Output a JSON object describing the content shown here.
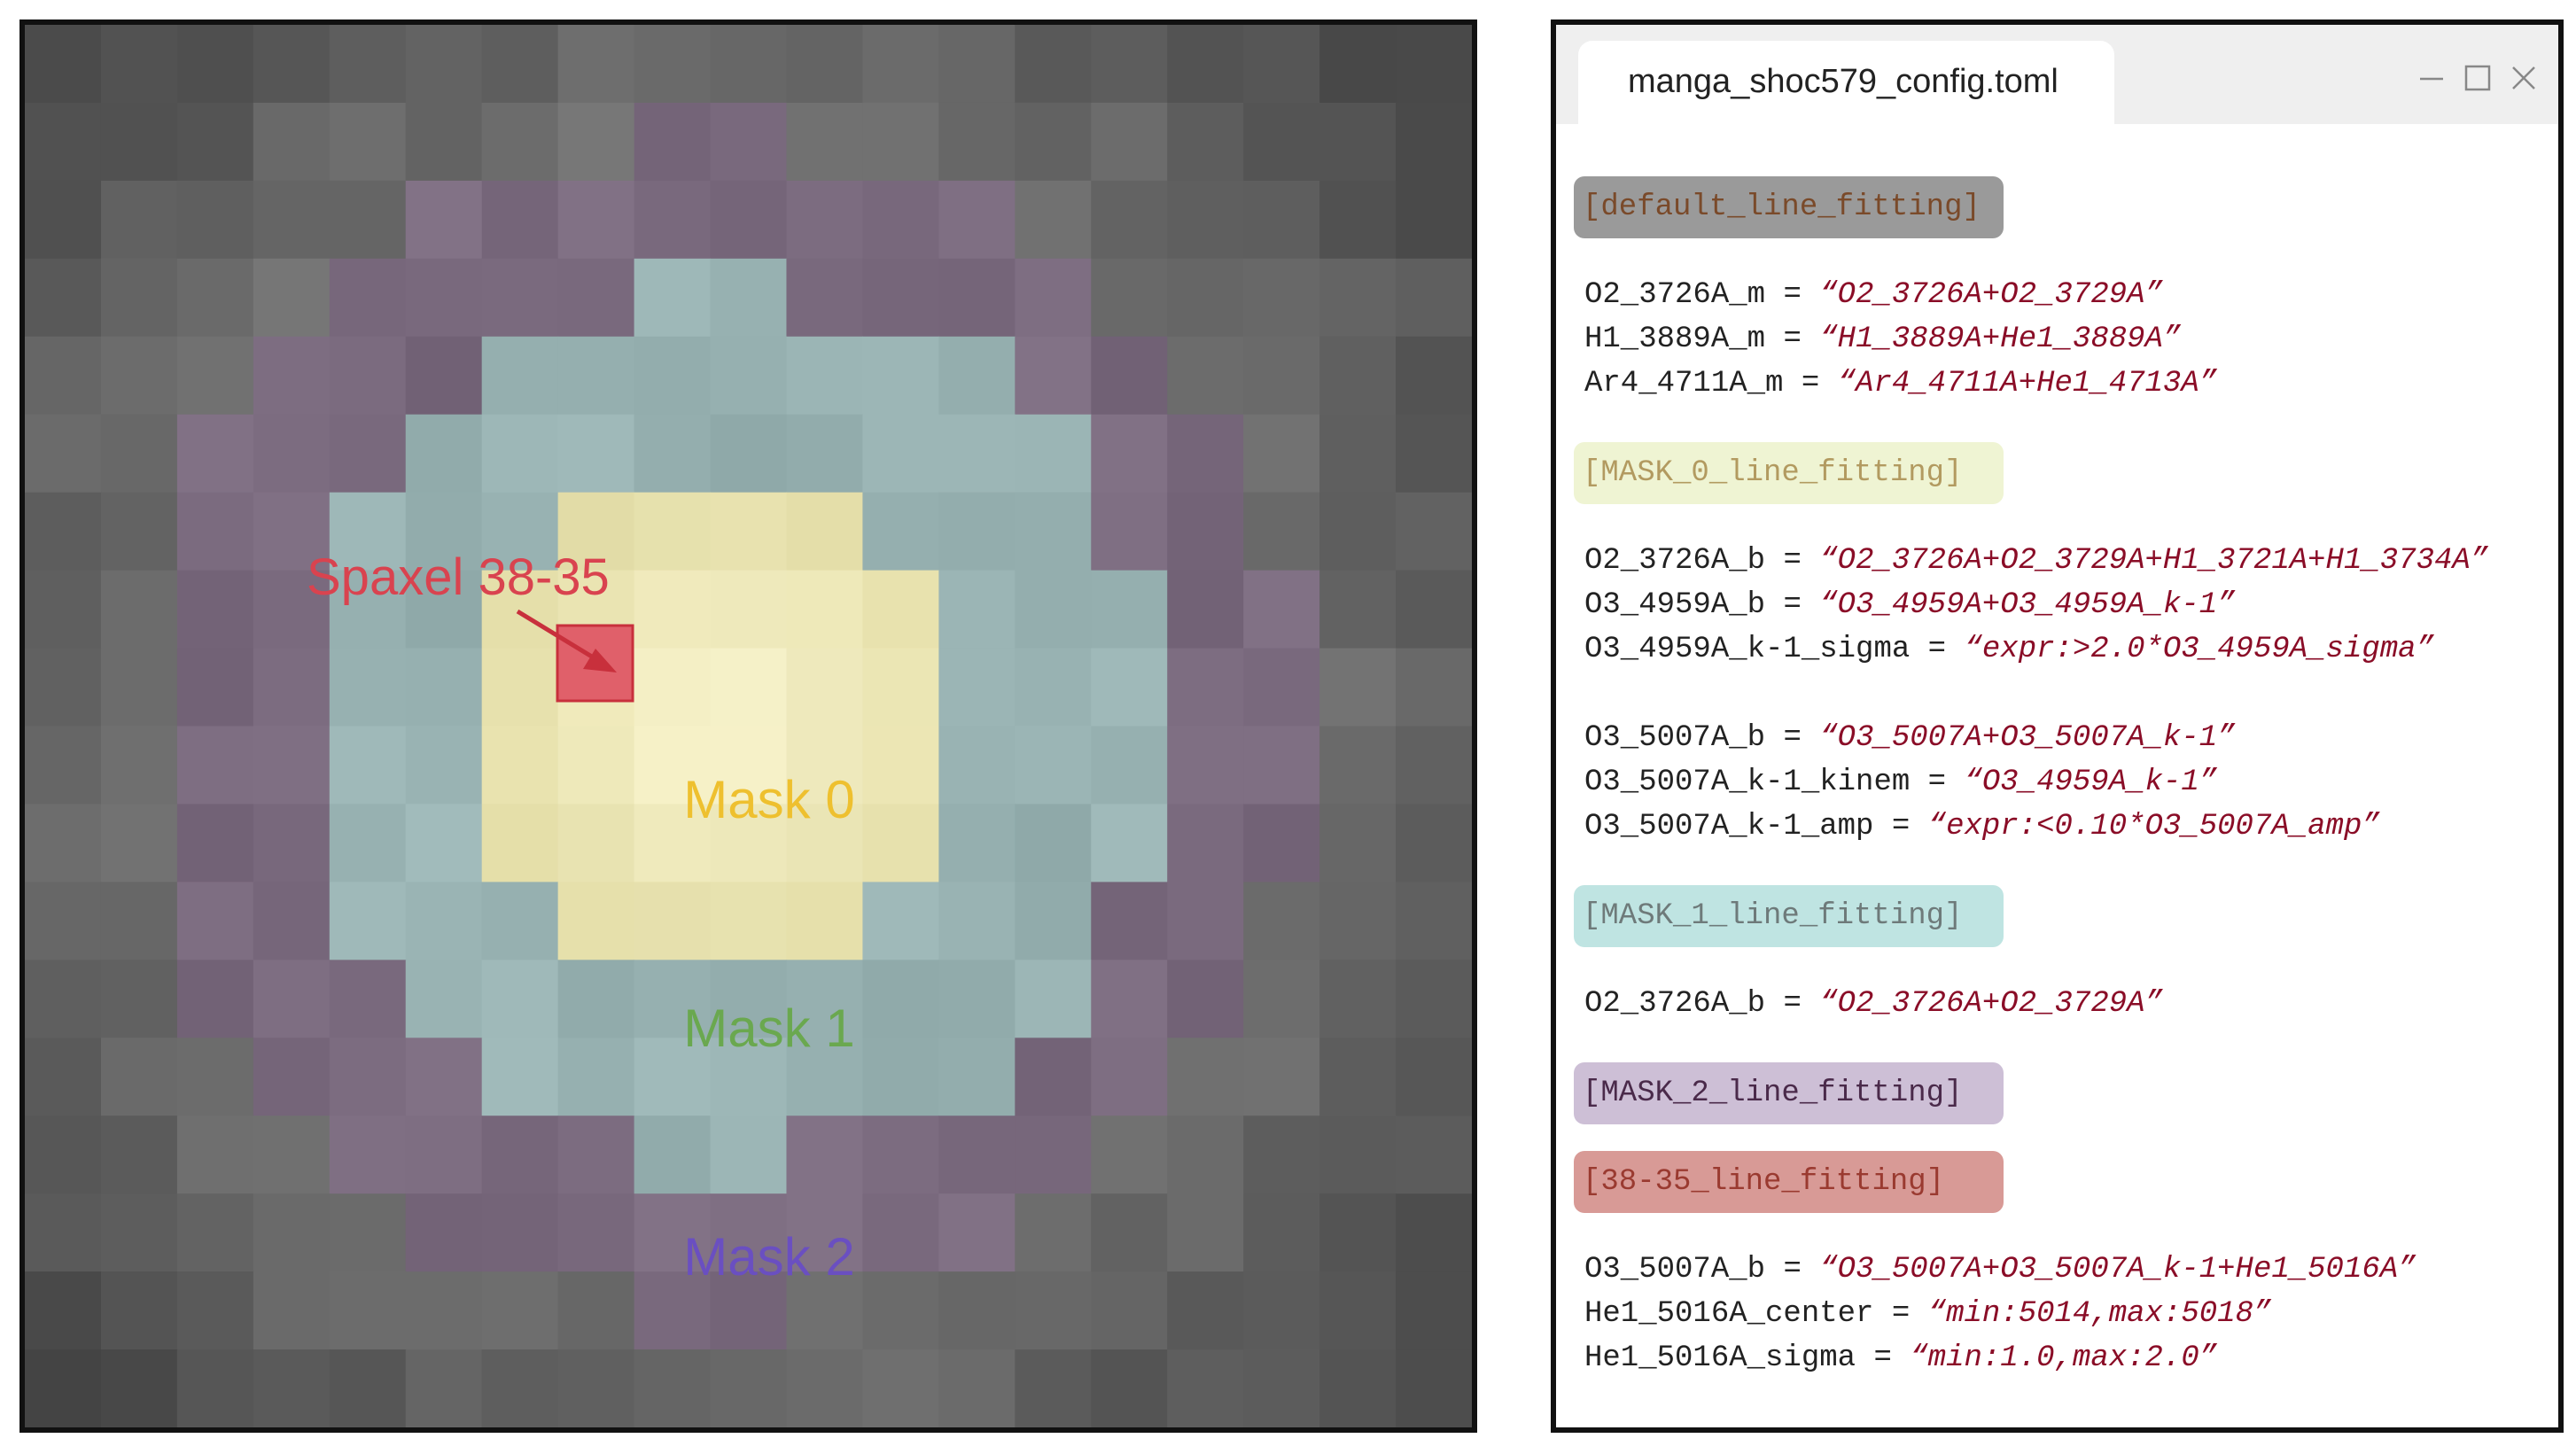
{
  "annotations": {
    "spaxel_label": "Spaxel 38-35",
    "mask0_label": "Mask 0",
    "mask1_label": "Mask 1",
    "mask2_label": "Mask 2"
  },
  "colors": {
    "mask0_label": "#eec02f",
    "mask1_label": "#6aa84f",
    "mask2_label": "#6a4fc1",
    "spaxel": "#d9434f",
    "value_text": "#8a0d27"
  },
  "config_window": {
    "tab_title": "manga_shoc579_config.toml",
    "icons": [
      "minimize-icon",
      "maximize-icon",
      "close-icon"
    ],
    "sections": [
      {
        "header": "[default_line_fitting]",
        "style": "gray",
        "lines": [
          {
            "key": "O2_3726A_m",
            "value": "“O2_3726A+O2_3729A”"
          },
          {
            "key": "H1_3889A_m",
            "value": "“H1_3889A+He1_3889A”"
          },
          {
            "key": "Ar4_4711A_m",
            "value": "“Ar4_4711A+He1_4713A”"
          }
        ]
      },
      {
        "header": "[MASK_0_line_fitting]",
        "style": "yellow",
        "lines": [
          {
            "key": "O2_3726A_b",
            "value": "“O2_3726A+O2_3729A+H1_3721A+H1_3734A”"
          },
          {
            "key": "O3_4959A_b",
            "value": "“O3_4959A+O3_4959A_k-1”"
          },
          {
            "key": "O3_4959A_k-1_sigma",
            "value": "“expr:>2.0*O3_4959A_sigma”"
          },
          {
            "key": "O3_5007A_b",
            "value": "“O3_5007A+O3_5007A_k-1”"
          },
          {
            "key": "O3_5007A_k-1_kinem",
            "value": "“O3_4959A_k-1”"
          },
          {
            "key": "O3_5007A_k-1_amp",
            "value": "“expr:<0.10*O3_5007A_amp”"
          }
        ]
      },
      {
        "header": "[MASK_1_line_fitting]",
        "style": "teal",
        "lines": [
          {
            "key": "O2_3726A_b",
            "value": "“O2_3726A+O2_3729A”"
          }
        ]
      },
      {
        "header": "[MASK_2_line_fitting]",
        "style": "purple",
        "lines": []
      },
      {
        "header": "[38-35_line_fitting]",
        "style": "red",
        "lines": [
          {
            "key": "O3_5007A_b",
            "value": "“O3_5007A+O3_5007A_k-1+He1_5016A”"
          },
          {
            "key": "He1_5016A_center",
            "value": "“min:5014,max:5018”"
          },
          {
            "key": "He1_5016A_sigma",
            "value": "“min:1.0,max:2.0”"
          }
        ]
      }
    ],
    "header_styles": {
      "gray": {
        "bg": "#9a9a9a",
        "fg": "#7a4a2a"
      },
      "yellow": {
        "bg": "#eff4d3",
        "fg": "#b29a60"
      },
      "teal": {
        "bg": "#bfe4e2",
        "fg": "#6e7a7a"
      },
      "purple": {
        "bg": "#cdbfd6",
        "fg": "#4a2a4a"
      },
      "red": {
        "bg": "#d89a96",
        "fg": "#9a3a30"
      }
    }
  }
}
